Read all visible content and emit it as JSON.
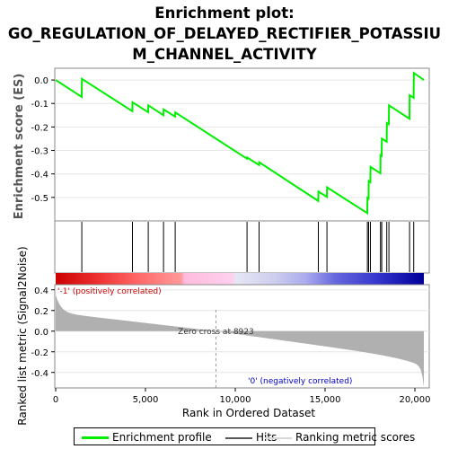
{
  "title_line1": "Enrichment plot:",
  "title_line2": "GO_REGULATION_OF_DELAYED_RECTIFIER_POTASSIU",
  "title_line3": "M_CHANNEL_ACTIVITY",
  "chart_data": {
    "type": "line",
    "es_ylabel": "Enrichment score (ES)",
    "ranked_ylabel": "Ranked list metric (Signal2Noise)",
    "xlabel": "Rank in Ordered Dataset",
    "x_ticks": [
      "0",
      "5,000",
      "10,000",
      "15,000",
      "20,000"
    ],
    "x_tick_values": [
      0,
      5000,
      10000,
      15000,
      20000
    ],
    "xlim": [
      0,
      20500
    ],
    "es_ylim": [
      -0.6,
      0.05
    ],
    "es_ticks": [
      "0.0",
      "-0.1",
      "-0.2",
      "-0.3",
      "-0.4",
      "-0.5"
    ],
    "es_tick_values": [
      0.0,
      -0.1,
      -0.2,
      -0.3,
      -0.4,
      -0.5
    ],
    "ranked_ylim": [
      -0.55,
      0.45
    ],
    "ranked_ticks": [
      "0.4",
      "0.2",
      "0.0",
      "-0.2",
      "-0.4"
    ],
    "ranked_tick_values": [
      0.4,
      0.2,
      0.0,
      -0.2,
      -0.4
    ],
    "enrichment_profile": {
      "name": "Enrichment profile",
      "color": "#00ee00",
      "x": [
        0,
        1450,
        1460,
        4270,
        4280,
        5150,
        5160,
        6000,
        6010,
        6650,
        6660,
        10650,
        10660,
        11320,
        11330,
        14620,
        14630,
        15100,
        15110,
        17350,
        17360,
        17420,
        17430,
        17520,
        17530,
        18080,
        18090,
        18150,
        18160,
        18430,
        18440,
        18550,
        18560,
        19700,
        19710,
        19930,
        19940,
        20500
      ],
      "y": [
        0.0,
        -0.072,
        0.005,
        -0.133,
        -0.095,
        -0.137,
        -0.108,
        -0.15,
        -0.125,
        -0.156,
        -0.138,
        -0.335,
        -0.33,
        -0.362,
        -0.35,
        -0.515,
        -0.475,
        -0.498,
        -0.457,
        -0.567,
        -0.502,
        -0.505,
        -0.43,
        -0.435,
        -0.37,
        -0.397,
        -0.32,
        -0.323,
        -0.25,
        -0.263,
        -0.183,
        -0.188,
        -0.108,
        -0.165,
        -0.065,
        -0.076,
        0.03,
        0.0
      ]
    },
    "hits": {
      "name": "Hits",
      "color": "#000000",
      "positions": [
        1455,
        4275,
        5155,
        6005,
        6655,
        10655,
        11325,
        14625,
        15105,
        17355,
        17425,
        17525,
        18085,
        18155,
        18435,
        18555,
        19705,
        19935
      ]
    },
    "ranking_metric": {
      "name": "Ranking metric scores",
      "color": "#c0c0c0",
      "zero_cross": 8923,
      "zero_cross_label": "Zero cross at 8923",
      "pos_label": "'-1' (positively correlated)",
      "neg_label": "'0' (negatively correlated)"
    }
  }
}
